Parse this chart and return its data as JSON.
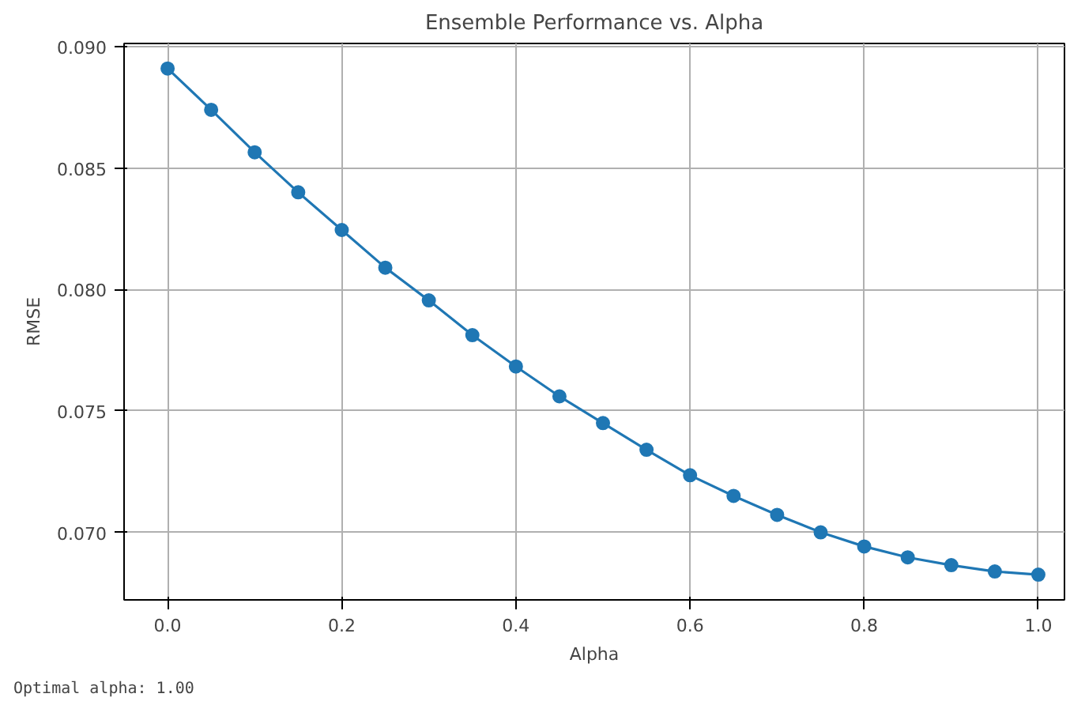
{
  "chart_data": {
    "type": "line",
    "title": "Ensemble Performance vs. Alpha",
    "xlabel": "Alpha",
    "ylabel": "RMSE",
    "x": [
      0.0,
      0.05,
      0.1,
      0.15,
      0.2,
      0.25,
      0.3,
      0.35,
      0.4,
      0.45,
      0.5,
      0.55,
      0.6,
      0.65,
      0.7,
      0.75,
      0.8,
      0.85,
      0.9,
      0.95,
      1.0
    ],
    "series": [
      {
        "color": "#1f77b4",
        "values": [
          0.0891,
          0.0874,
          0.08565,
          0.084,
          0.08245,
          0.0809,
          0.07955,
          0.07812,
          0.07683,
          0.0756,
          0.0745,
          0.0734,
          0.07235,
          0.0715,
          0.07072,
          0.07,
          0.06942,
          0.06897,
          0.06865,
          0.06839,
          0.06826
        ]
      }
    ],
    "xlim": [
      -0.05,
      1.03
    ],
    "ylim": [
      0.06722,
      0.09013
    ],
    "xticks": [
      {
        "value": 0,
        "label": "0.0"
      },
      {
        "value": 0.2,
        "label": "0.2"
      },
      {
        "value": 0.4,
        "label": "0.4"
      },
      {
        "value": 0.6,
        "label": "0.6"
      },
      {
        "value": 0.8,
        "label": "0.8"
      },
      {
        "value": 1,
        "label": "1.0"
      }
    ],
    "yticks": [
      {
        "value": 0.07,
        "label": "0.070"
      },
      {
        "value": 0.075,
        "label": "0.075"
      },
      {
        "value": 0.08,
        "label": "0.080"
      },
      {
        "value": 0.085,
        "label": "0.085"
      },
      {
        "value": 0.09,
        "label": "0.090"
      }
    ],
    "grid": true,
    "marker": "circle",
    "line_style": "solid",
    "annotations": [
      "Optimal alpha: 1.00"
    ]
  }
}
